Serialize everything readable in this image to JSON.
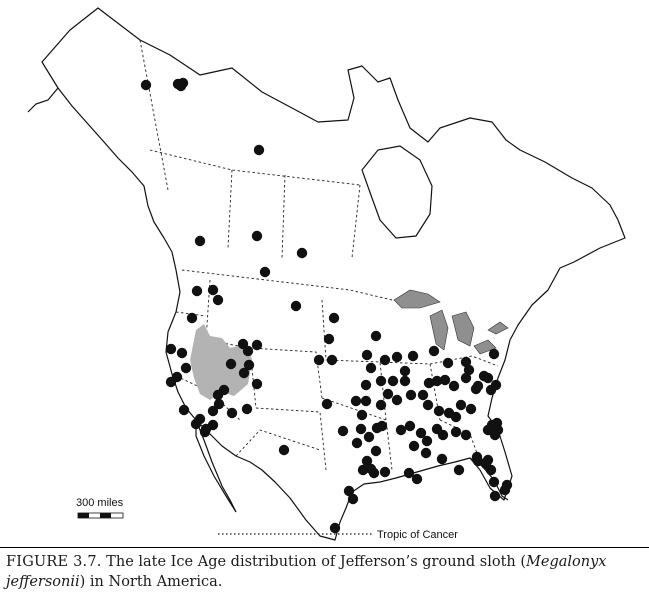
{
  "map": {
    "scale_bar_label": "300 miles",
    "tropic_label": "Tropic of Cancer",
    "colors": {
      "land_fill": "#ffffff",
      "coast_stroke": "#111111",
      "border_stroke": "#222222",
      "lake_fill": "#8f8f8f",
      "lake_bonneville_fill": "#b3b3b3",
      "dot_fill": "#111111"
    },
    "legend": []
  },
  "caption": {
    "figure_label": "FIGURE 3.7.",
    "text_before": " The late Ice Age distribution of Jefferson’s ground sloth (",
    "scientific_name": "Megalonyx jeffersonii",
    "text_after": ") in North America."
  }
}
